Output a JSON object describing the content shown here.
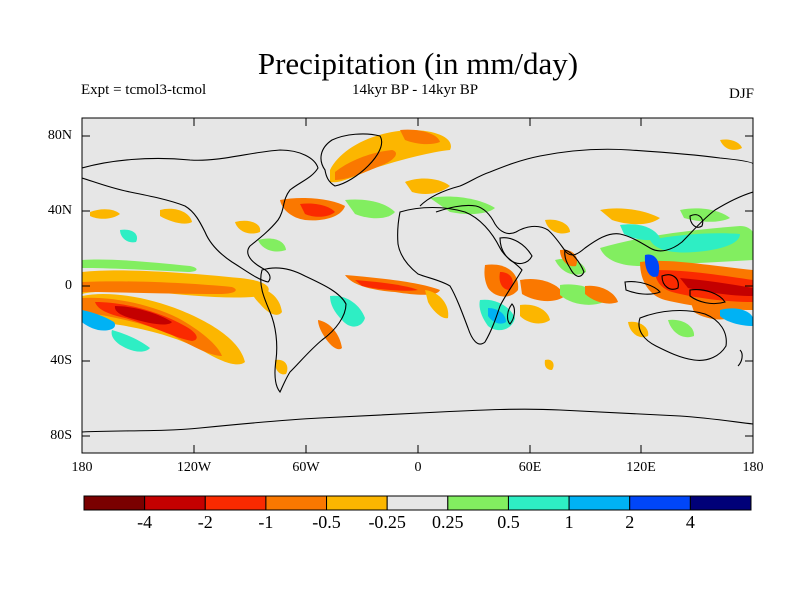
{
  "title": "Precipitation (in mm/day)",
  "experiment_label": "Expt = tcmol3-tcmol",
  "period_label": "14kyr BP - 14kyr BP",
  "season_label": "DJF",
  "latitude_ticks": [
    "80N",
    "40N",
    "0",
    "40S",
    "80S"
  ],
  "longitude_ticks": [
    "180",
    "120W",
    "60W",
    "0",
    "60E",
    "120E",
    "180"
  ],
  "colorbar": {
    "colors": [
      "#7a0000",
      "#c40000",
      "#fa2a00",
      "#fa7800",
      "#fcb600",
      "#e6e6e6",
      "#82ee60",
      "#2eeec4",
      "#00b2f4",
      "#0046f8",
      "#000078"
    ],
    "labels": [
      "-4",
      "-2",
      "-1",
      "-0.5",
      "-0.25",
      "0.25",
      "0.5",
      "1",
      "2",
      "4"
    ]
  },
  "colors": {
    "background": "#e6e6e6",
    "land_outline": "#000000"
  }
}
